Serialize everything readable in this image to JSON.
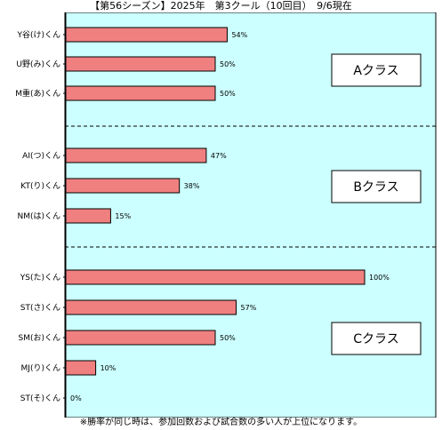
{
  "chart_data": {
    "type": "bar",
    "orientation": "horizontal",
    "title": "【第56シーズン】2025年　第3クール（10回目）　9/6現在",
    "categories": [
      "Y谷(け)くん",
      "U野(み)くん",
      "M重(あ)くん",
      "AI(つ)くん",
      "KT(り)くん",
      "NM(は)くん",
      "YS(た)くん",
      "ST(さ)くん",
      "SM(お)くん",
      "MJ(り)くん",
      "ST(そ)くん"
    ],
    "values": [
      54,
      50,
      50,
      47,
      38,
      15,
      100,
      57,
      50,
      10,
      0
    ],
    "value_labels": [
      "54%",
      "50%",
      "50%",
      "47%",
      "38%",
      "15%",
      "100%",
      "57%",
      "50%",
      "10%",
      "0%"
    ],
    "xlim": [
      0,
      100
    ],
    "grid": false,
    "groups": [
      {
        "name": "Aクラス",
        "members": [
          0,
          1,
          2
        ]
      },
      {
        "name": "Bクラス",
        "members": [
          3,
          4,
          5
        ]
      },
      {
        "name": "Cクラス",
        "members": [
          6,
          7,
          8,
          9,
          10
        ]
      }
    ],
    "footnote": "※勝率が同じ時は、参加回数および試合数の多い人が上位になります。",
    "colors": {
      "bar": "#f08080",
      "plot_bg": "#ccffff",
      "border": "#000000"
    }
  }
}
